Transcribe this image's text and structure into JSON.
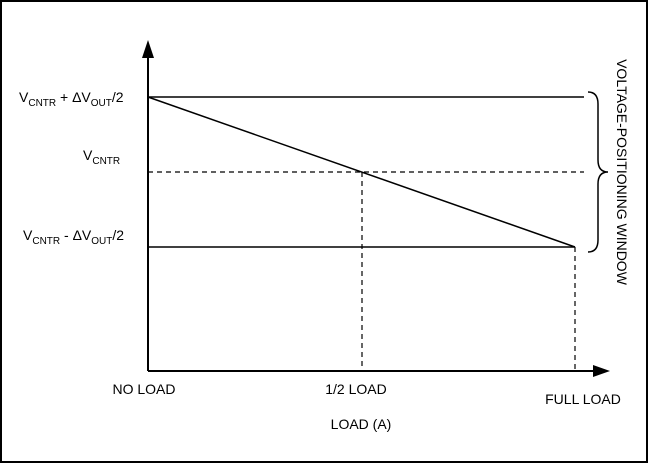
{
  "diagram": {
    "y_labels": {
      "upper": {
        "base": "V",
        "sub1": "CNTR",
        "mid": " + ΔV",
        "sub2": "OUT",
        "tail": "/2"
      },
      "center": {
        "base": "V",
        "sub1": "CNTR"
      },
      "lower": {
        "base": "V",
        "sub1": "CNTR",
        "mid": " - ΔV",
        "sub2": "OUT",
        "tail": "/2"
      }
    },
    "x_tick_labels": {
      "start": "NO LOAD",
      "half": "1/2  LOAD",
      "full": "FULL LOAD"
    },
    "x_axis_label": "LOAD (A)",
    "window_label": "VOLTAGE-POSITIONING WINDOW"
  }
}
